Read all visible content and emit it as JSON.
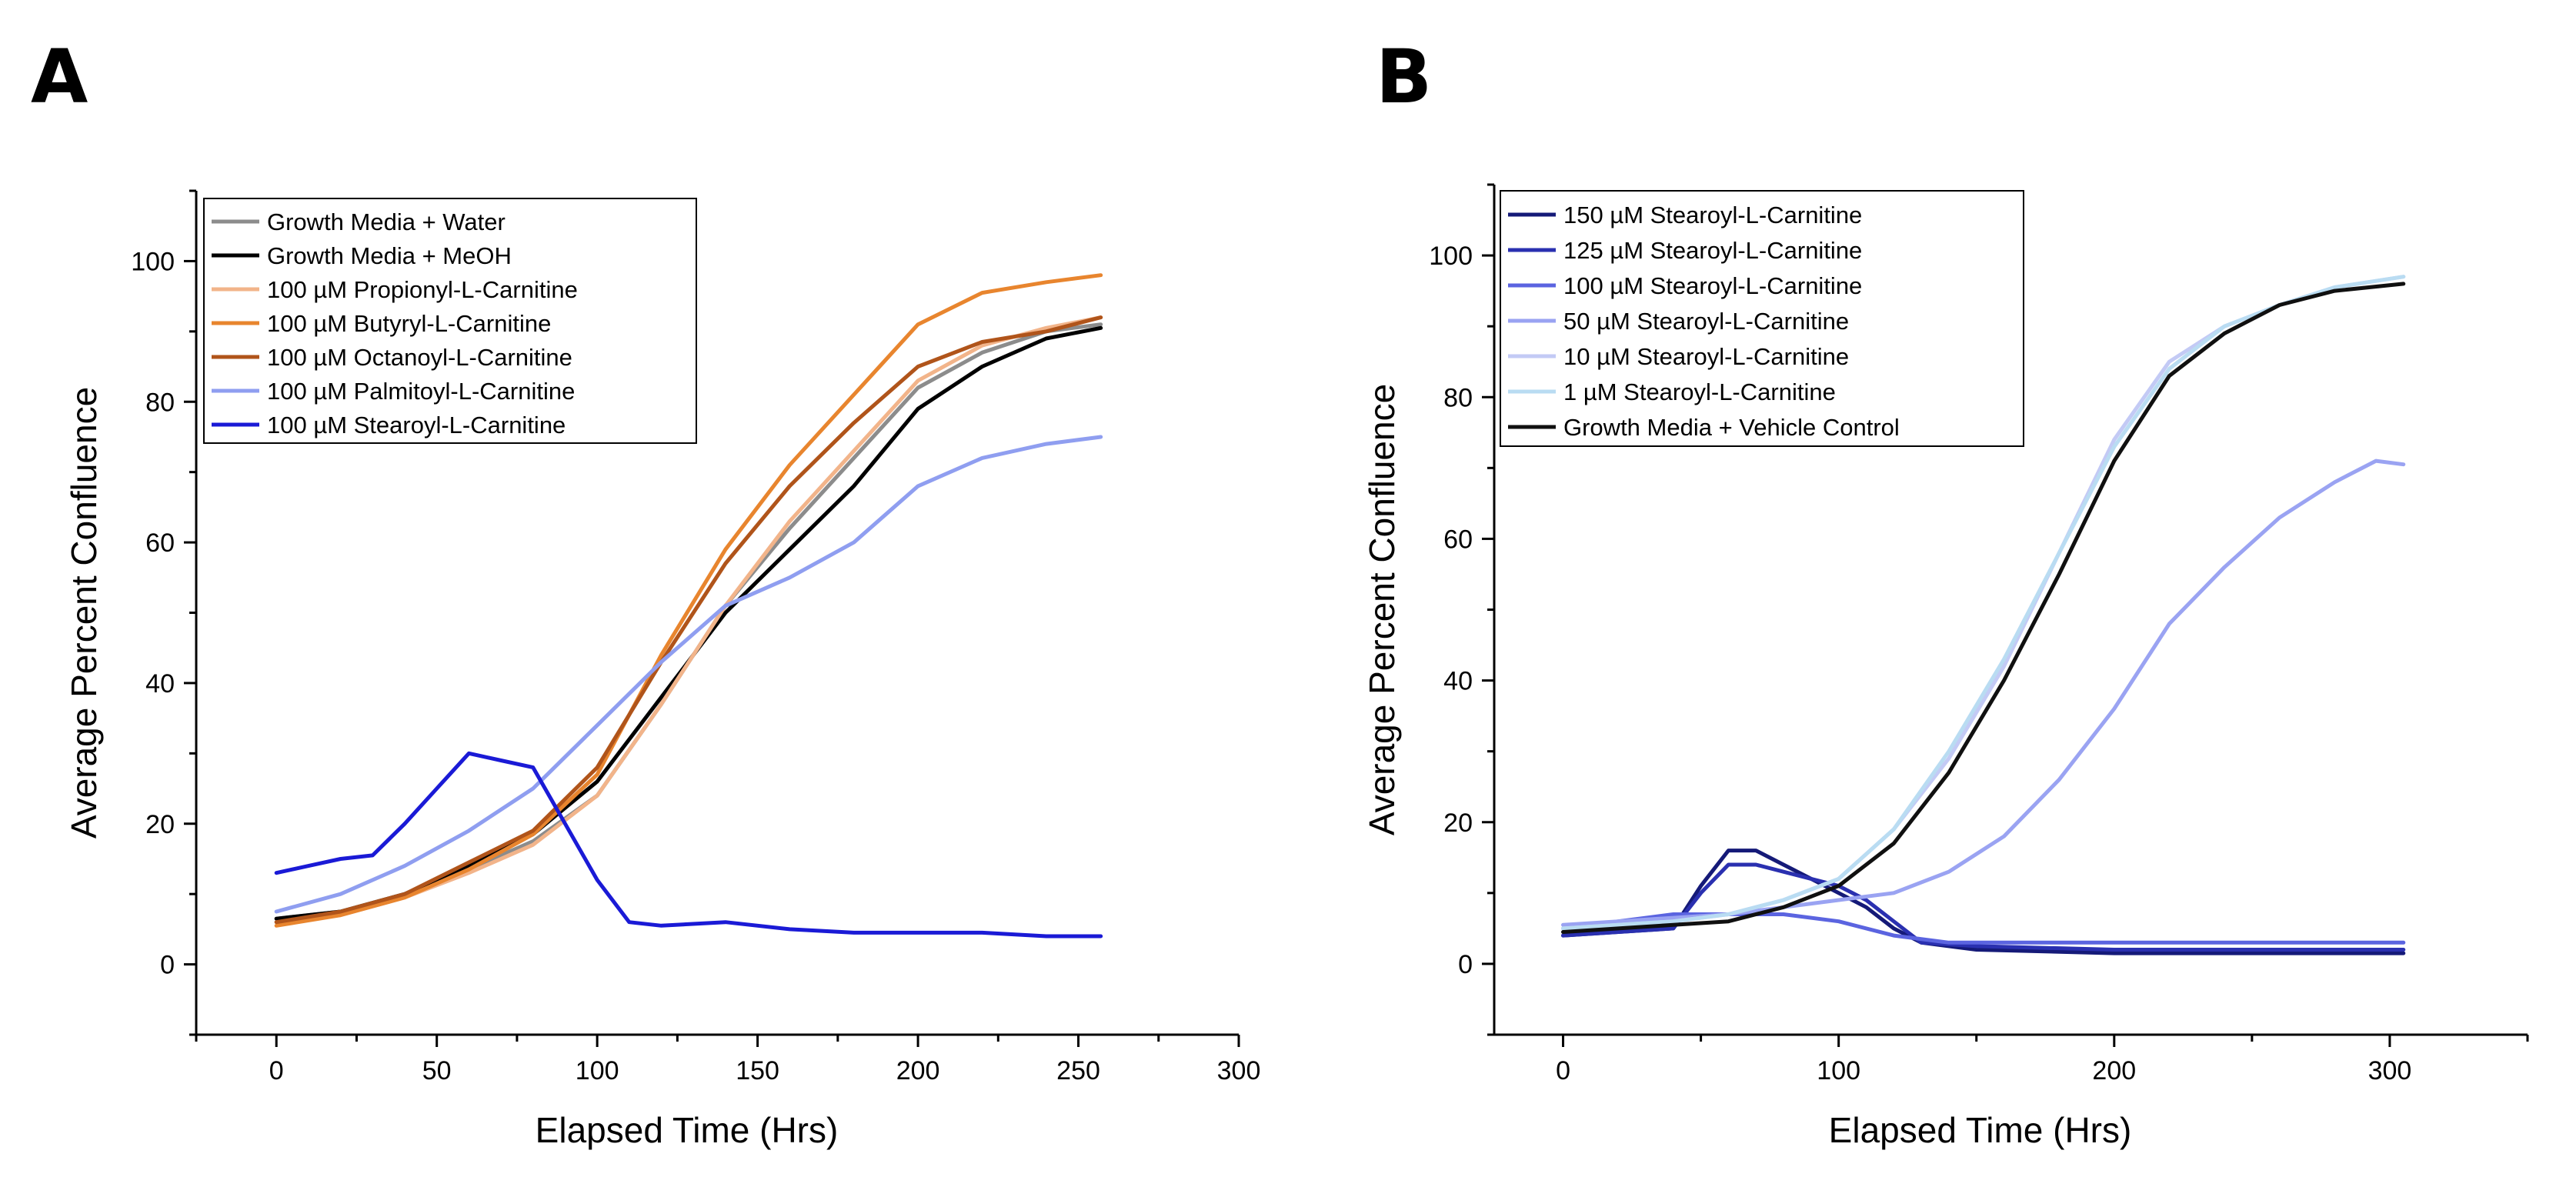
{
  "panels": [
    {
      "letter": "A"
    },
    {
      "letter": "B"
    }
  ],
  "chart_data": [
    {
      "type": "line",
      "panel": "A",
      "xlabel": "Elapsed Time (Hrs)",
      "ylabel": "Average Percent Confluence",
      "xlim": [
        -25,
        300
      ],
      "ylim": [
        -10,
        110
      ],
      "xticks": [
        0,
        50,
        100,
        150,
        200,
        250,
        300
      ],
      "yticks": [
        0,
        20,
        40,
        60,
        80,
        100
      ],
      "legend_position": "top-left",
      "series": [
        {
          "name": "Growth Media + Water",
          "color": "#8c8c8c",
          "x": [
            0,
            20,
            40,
            60,
            80,
            100,
            120,
            140,
            160,
            180,
            200,
            220,
            240,
            257
          ],
          "y": [
            6.5,
            7.5,
            10,
            13.5,
            17.5,
            24,
            37,
            51,
            62,
            72,
            82,
            87,
            90,
            91
          ]
        },
        {
          "name": "Growth Media + MeOH",
          "color": "#000000",
          "x": [
            0,
            20,
            40,
            60,
            80,
            100,
            120,
            140,
            160,
            180,
            200,
            220,
            240,
            257
          ],
          "y": [
            6.5,
            7.5,
            10,
            14,
            18.5,
            26,
            38,
            50,
            59,
            68,
            79,
            85,
            89,
            90.5
          ]
        },
        {
          "name": "100 µM Propionyl-L-Carnitine",
          "color": "#f2b48a",
          "x": [
            0,
            20,
            40,
            60,
            80,
            100,
            120,
            140,
            160,
            180,
            200,
            220,
            240,
            257
          ],
          "y": [
            6,
            7,
            9.5,
            13,
            17,
            24,
            37,
            51,
            63,
            73,
            83,
            88,
            90.5,
            92
          ]
        },
        {
          "name": "100 µM Butyryl-L-Carnitine",
          "color": "#e8852e",
          "x": [
            0,
            20,
            40,
            60,
            80,
            100,
            120,
            140,
            160,
            180,
            200,
            220,
            240,
            257
          ],
          "y": [
            5.5,
            7,
            9.5,
            13.5,
            18.5,
            27,
            44,
            59,
            71,
            81,
            91,
            95.5,
            97,
            98
          ]
        },
        {
          "name": "100 µM Octanoyl-L-Carnitine",
          "color": "#b0541a",
          "x": [
            0,
            20,
            40,
            60,
            80,
            100,
            120,
            140,
            160,
            180,
            200,
            220,
            240,
            257
          ],
          "y": [
            6,
            7.5,
            10,
            14.5,
            19,
            28,
            43,
            57,
            68,
            77,
            85,
            88.5,
            90,
            92
          ]
        },
        {
          "name": "100 µM Palmitoyl-L-Carnitine",
          "color": "#8f9ef0",
          "x": [
            0,
            20,
            40,
            60,
            80,
            100,
            120,
            140,
            160,
            180,
            200,
            220,
            240,
            257
          ],
          "y": [
            7.5,
            10,
            14,
            19,
            25,
            34,
            43,
            51,
            55,
            60,
            68,
            72,
            74,
            75
          ]
        },
        {
          "name": "100 µM Stearoyl-L-Carnitine",
          "color": "#1a1ad6",
          "x": [
            0,
            10,
            20,
            30,
            40,
            50,
            60,
            70,
            80,
            90,
            100,
            110,
            120,
            140,
            160,
            180,
            200,
            220,
            240,
            257
          ],
          "y": [
            13,
            14,
            15,
            15.5,
            20,
            25,
            30,
            29,
            28,
            20,
            12,
            6,
            5.5,
            6,
            5,
            4.5,
            4.5,
            4.5,
            4,
            4
          ]
        }
      ]
    },
    {
      "type": "line",
      "panel": "B",
      "xlabel": "Elapsed Time (Hrs)",
      "ylabel": "Average Percent Confluence",
      "xlim": [
        -25,
        350
      ],
      "ylim": [
        -10,
        110
      ],
      "xticks": [
        0,
        100,
        200,
        300
      ],
      "yticks": [
        0,
        20,
        40,
        60,
        80,
        100
      ],
      "legend_position": "top-left",
      "series": [
        {
          "name": "150 µM Stearoyl-L-Carnitine",
          "color": "#151a78",
          "x": [
            0,
            20,
            40,
            50,
            60,
            70,
            80,
            90,
            100,
            110,
            120,
            130,
            150,
            200,
            250,
            305
          ],
          "y": [
            4,
            4.5,
            5,
            11,
            16,
            16,
            14,
            12,
            10,
            8,
            5,
            3,
            2,
            1.5,
            1.5,
            1.5
          ]
        },
        {
          "name": "125 µM Stearoyl-L-Carnitine",
          "color": "#2a30b0",
          "x": [
            0,
            20,
            40,
            50,
            60,
            70,
            80,
            90,
            100,
            110,
            120,
            130,
            150,
            200,
            250,
            305
          ],
          "y": [
            4,
            4.5,
            5,
            10,
            14,
            14,
            13,
            12,
            11,
            9,
            6,
            3,
            2.5,
            2,
            2,
            2
          ]
        },
        {
          "name": "100 µM Stearoyl-L-Carnitine",
          "color": "#5b64e0",
          "x": [
            0,
            20,
            40,
            60,
            80,
            100,
            120,
            140,
            200,
            250,
            305
          ],
          "y": [
            5,
            6,
            7,
            7,
            7,
            6,
            4,
            3,
            3,
            3,
            3
          ]
        },
        {
          "name": "50 µM Stearoyl-L-Carnitine",
          "color": "#9aa3f2",
          "x": [
            0,
            20,
            40,
            60,
            80,
            100,
            120,
            140,
            160,
            180,
            200,
            220,
            240,
            260,
            280,
            295,
            305
          ],
          "y": [
            5.5,
            6,
            6.5,
            7,
            8,
            9,
            10,
            13,
            18,
            26,
            36,
            48,
            56,
            63,
            68,
            71,
            70.5
          ]
        },
        {
          "name": "10 µM Stearoyl-L-Carnitine",
          "color": "#c3caf5",
          "x": [
            0,
            20,
            40,
            60,
            80,
            100,
            120,
            140,
            160,
            180,
            200,
            220,
            240,
            260,
            280,
            305
          ],
          "y": [
            5,
            5.5,
            6,
            7,
            9,
            12,
            19,
            29,
            42,
            58,
            74,
            85,
            90,
            93,
            95.5,
            97
          ]
        },
        {
          "name": "1 µM Stearoyl-L-Carnitine",
          "color": "#b9dcf2",
          "x": [
            0,
            20,
            40,
            60,
            80,
            100,
            120,
            140,
            160,
            180,
            200,
            220,
            240,
            260,
            280,
            305
          ],
          "y": [
            5,
            5.5,
            6,
            7,
            9,
            12,
            19,
            30,
            43,
            58,
            73,
            84,
            90,
            93,
            95.5,
            97
          ]
        },
        {
          "name": "Growth Media + Vehicle Control",
          "color": "#101010",
          "x": [
            0,
            20,
            40,
            60,
            80,
            100,
            120,
            140,
            160,
            180,
            200,
            220,
            240,
            260,
            280,
            305
          ],
          "y": [
            4.5,
            5,
            5.5,
            6,
            8,
            11,
            17,
            27,
            40,
            55,
            71,
            83,
            89,
            93,
            95,
            96
          ]
        }
      ]
    }
  ]
}
